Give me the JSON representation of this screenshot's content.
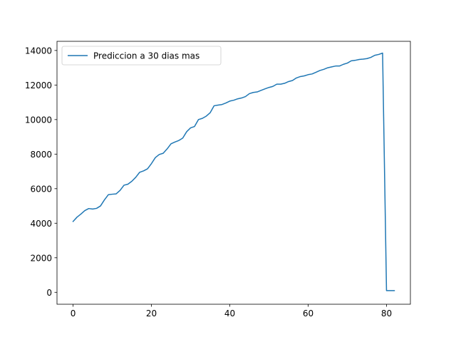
{
  "chart_data": {
    "type": "line",
    "title": "",
    "xlabel": "",
    "ylabel": "",
    "xlim": [
      -4.1,
      86.1
    ],
    "ylim": [
      -690,
      14530
    ],
    "xticks": [
      0,
      20,
      40,
      60,
      80
    ],
    "yticks": [
      0,
      2000,
      4000,
      6000,
      8000,
      10000,
      12000,
      14000
    ],
    "grid": false,
    "legend": "top-left",
    "series": [
      {
        "name": "Prediccion a 30 dias mas",
        "color": "#1f77b4",
        "x": [
          0,
          1,
          2,
          3,
          4,
          5,
          6,
          7,
          8,
          9,
          10,
          11,
          12,
          13,
          14,
          15,
          16,
          17,
          18,
          19,
          20,
          21,
          22,
          23,
          24,
          25,
          26,
          27,
          28,
          29,
          30,
          31,
          32,
          33,
          34,
          35,
          36,
          37,
          38,
          39,
          40,
          41,
          42,
          43,
          44,
          45,
          46,
          47,
          48,
          49,
          50,
          51,
          52,
          53,
          54,
          55,
          56,
          57,
          58,
          59,
          60,
          61,
          62,
          63,
          64,
          65,
          66,
          67,
          68,
          69,
          70,
          71,
          72,
          73,
          74,
          75,
          76,
          77,
          78,
          79,
          80,
          81,
          82
        ],
        "y": [
          4100,
          4350,
          4530,
          4730,
          4850,
          4820,
          4860,
          5000,
          5350,
          5650,
          5680,
          5700,
          5900,
          6200,
          6260,
          6430,
          6660,
          6950,
          7030,
          7150,
          7450,
          7800,
          7980,
          8050,
          8300,
          8600,
          8700,
          8790,
          8930,
          9300,
          9520,
          9600,
          10000,
          10070,
          10200,
          10400,
          10800,
          10840,
          10870,
          10960,
          11070,
          11120,
          11200,
          11250,
          11330,
          11500,
          11570,
          11600,
          11690,
          11780,
          11860,
          11920,
          12050,
          12050,
          12100,
          12200,
          12260,
          12410,
          12490,
          12530,
          12600,
          12640,
          12740,
          12840,
          12910,
          13000,
          13050,
          13100,
          13100,
          13200,
          13270,
          13400,
          13430,
          13480,
          13500,
          13530,
          13600,
          13720,
          13770,
          13850,
          100,
          100,
          100
        ]
      }
    ]
  }
}
